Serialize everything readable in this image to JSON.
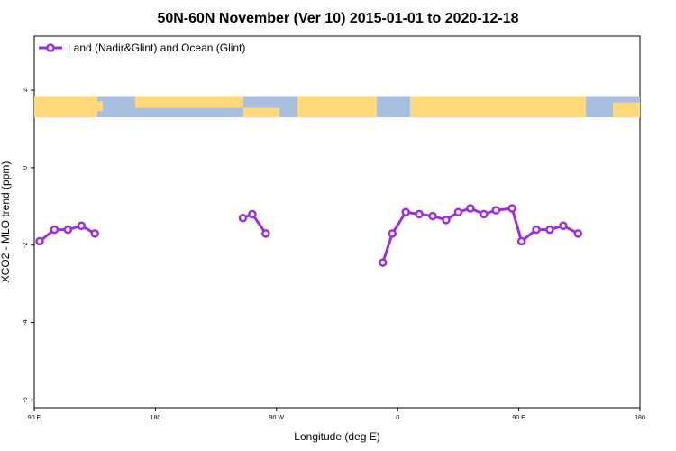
{
  "chart_data": {
    "type": "line",
    "title": "50N-60N November (Ver 10)   2015-01-01 to 2020-12-18",
    "xlabel": "Longitude (deg E)",
    "ylabel": "XCO2 - MLO trend (ppm)",
    "xlim": [
      90,
      450
    ],
    "ylim": [
      -6.2,
      3.4
    ],
    "xticks": [
      {
        "value": 90,
        "label": "90 E"
      },
      {
        "value": 180,
        "label": "180"
      },
      {
        "value": 270,
        "label": "90 W"
      },
      {
        "value": 360,
        "label": "0"
      },
      {
        "value": 450,
        "label": "90 E"
      },
      {
        "value": 540,
        "label": "180"
      }
    ],
    "yticks": [
      {
        "value": 2,
        "label": "2"
      },
      {
        "value": 0,
        "label": "0"
      },
      {
        "value": -2,
        "label": "-2"
      },
      {
        "value": -4,
        "label": "-4"
      },
      {
        "value": -6,
        "label": "-6"
      }
    ],
    "legend": {
      "position": "top-left",
      "entries": [
        "Land (Nadir&Glint) and Ocean (Glint)"
      ]
    },
    "color": "#9b30e0",
    "map_strip": {
      "y_range": [
        1.3,
        1.85
      ],
      "land_color": "#ffd97a",
      "ocean_color": "#a9bfdf"
    },
    "series": [
      {
        "name": "Land (Nadir&Glint) and Ocean (Glint)",
        "segments": [
          [
            [
              94,
              -1.9
            ],
            [
              105,
              -1.6
            ],
            [
              115,
              -1.6
            ],
            [
              125,
              -1.5
            ],
            [
              135,
              -1.7
            ]
          ],
          [
            [
              245,
              -1.3
            ],
            [
              252,
              -1.2
            ],
            [
              262,
              -1.7
            ]
          ],
          [
            [
              349,
              -2.45
            ],
            [
              356,
              -1.7
            ],
            [
              366,
              -1.15
            ],
            [
              376,
              -1.2
            ],
            [
              386,
              -1.25
            ],
            [
              396,
              -1.35
            ],
            [
              405,
              -1.15
            ],
            [
              414,
              -1.05
            ],
            [
              424,
              -1.2
            ],
            [
              433,
              -1.1
            ],
            [
              445,
              -1.05
            ],
            [
              452,
              -1.9
            ],
            [
              463,
              -1.6
            ],
            [
              473,
              -1.6
            ],
            [
              483,
              -1.5
            ],
            [
              494,
              -1.7
            ]
          ]
        ]
      }
    ]
  }
}
